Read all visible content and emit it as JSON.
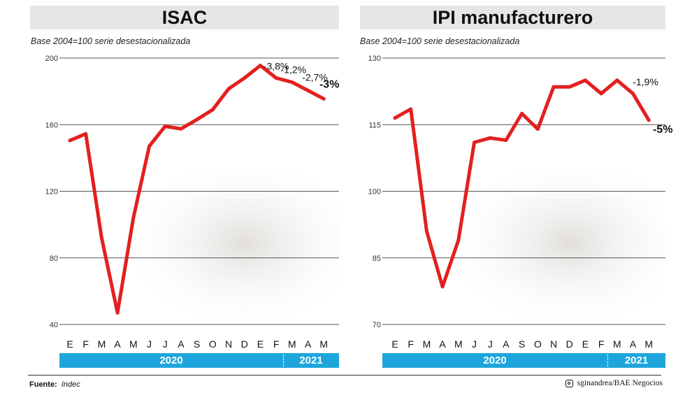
{
  "chart_data": [
    {
      "type": "line",
      "title": "ISAC",
      "subtitle": "Base 2004=100 serie desestacionalizada",
      "categories": [
        "E",
        "F",
        "M",
        "A",
        "M",
        "J",
        "J",
        "A",
        "S",
        "O",
        "N",
        "D",
        "E",
        "F",
        "M",
        "A",
        "M"
      ],
      "values": [
        150.5,
        154.5,
        92,
        47,
        104,
        147,
        159,
        157.5,
        163,
        169,
        181.5,
        188,
        195.5,
        188,
        185.5,
        180.5,
        175.5
      ],
      "ylim": [
        40,
        200
      ],
      "yticks": [
        "40",
        "80",
        "120",
        "160",
        "200"
      ],
      "ytick_values": [
        40,
        80,
        120,
        160,
        200
      ],
      "annotations": [
        "-3,8%",
        "-1,2%",
        "-2,7%",
        "-3%"
      ],
      "years": [
        "2020",
        "2021"
      ],
      "grid": true,
      "line_color": "#e3201f"
    },
    {
      "type": "line",
      "title": "IPI manufacturero",
      "subtitle": "Base 2004=100 serie desestacionalizada",
      "categories": [
        "E",
        "F",
        "M",
        "A",
        "M",
        "J",
        "J",
        "A",
        "S",
        "O",
        "N",
        "D",
        "E",
        "F",
        "M",
        "A",
        "M"
      ],
      "values": [
        116.5,
        118.5,
        91,
        78.5,
        89,
        111,
        112,
        111.5,
        117.5,
        114,
        123.5,
        123.5,
        125,
        122,
        125,
        122,
        116
      ],
      "ylim": [
        70,
        130
      ],
      "yticks": [
        "70",
        "85",
        "100",
        "115",
        "130"
      ],
      "ytick_values": [
        70,
        85,
        100,
        115,
        130
      ],
      "annotations": [
        "-1,9%",
        "-5%"
      ],
      "years": [
        "2020",
        "2021"
      ],
      "grid": true,
      "line_color": "#e3201f"
    }
  ],
  "footer": {
    "source_label": "Fuente:",
    "source_value": "Indec",
    "credit": "sginandrea/BAE Negocios",
    "credit_icon": "instagram-icon"
  },
  "colors": {
    "line": "#e3201f",
    "year_bar": "#1ea6dc",
    "title_bar": "#e6e6e6"
  }
}
